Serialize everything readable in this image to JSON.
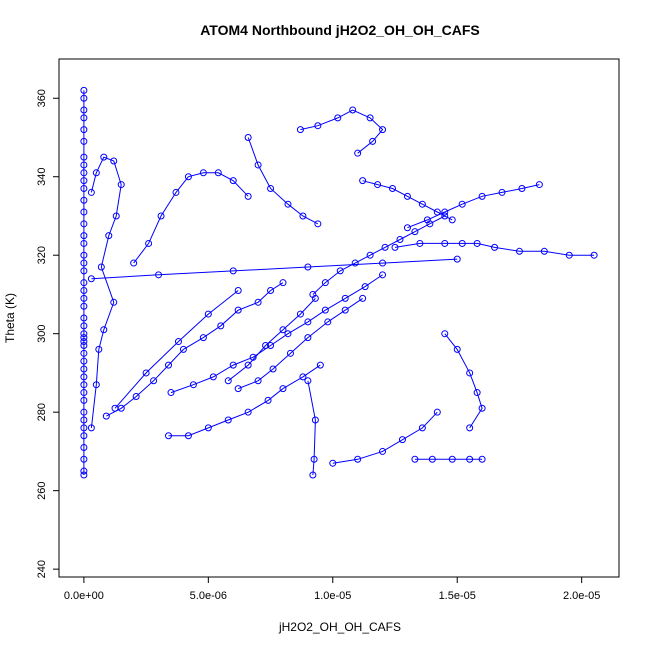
{
  "chart_data": {
    "type": "line",
    "title": "ATOM4 Northbound jH2O2_OH_OH_CAFS",
    "xlabel": "jH2O2_OH_OH_CAFS",
    "ylabel": "Theta (K)",
    "xlim": [
      -1e-06,
      2.15e-05
    ],
    "ylim": [
      238,
      370
    ],
    "x_ticks": [
      0,
      5e-06,
      1e-05,
      1.5e-05,
      2e-05
    ],
    "x_tick_labels": [
      "0.0e+00",
      "5.0e-06",
      "1.0e-05",
      "1.5e-05",
      "2.0e-05"
    ],
    "y_ticks": [
      240,
      260,
      280,
      300,
      320,
      340,
      360
    ],
    "y_tick_labels": [
      "240",
      "260",
      "280",
      "300",
      "320",
      "340",
      "360"
    ],
    "grid": false,
    "legend": "none",
    "marker": "open-circle",
    "color": "#0000ff",
    "series": [
      {
        "x": [
          0,
          0,
          0,
          0,
          0,
          0,
          0,
          0,
          0,
          0,
          0,
          0,
          0,
          0,
          0,
          0,
          0,
          0,
          0,
          0,
          0,
          0,
          0,
          0,
          0,
          0,
          0,
          0,
          0,
          0,
          0,
          0,
          0,
          0,
          0,
          0,
          0,
          0,
          0,
          0,
          0,
          0,
          0,
          0
        ],
        "y": [
          264,
          265,
          268,
          271,
          274,
          276,
          278,
          280,
          283,
          285,
          287,
          289,
          291,
          293,
          295,
          297,
          298,
          299,
          300,
          302,
          304,
          307,
          309,
          311,
          313,
          316,
          318,
          320,
          323,
          325,
          328,
          331,
          334,
          337,
          339,
          341,
          343,
          345,
          349,
          352,
          355,
          357,
          360,
          362
        ]
      },
      {
        "x": [
          3e-07,
          5e-07,
          6e-07,
          8e-07,
          1.2e-06,
          7e-07,
          1e-06,
          1.3e-06,
          1.5e-06,
          1.2e-06,
          8e-07,
          5e-07,
          3e-07
        ],
        "y": [
          276,
          287,
          296,
          301,
          308,
          317,
          325,
          330,
          338,
          344,
          345,
          341,
          336
        ]
      },
      {
        "x": [
          9e-07,
          1.5e-06,
          2.1e-06,
          2.8e-06,
          3.4e-06,
          4e-06,
          4.8e-06,
          5.5e-06,
          6.2e-06,
          7e-06,
          7.5e-06,
          8e-06
        ],
        "y": [
          279,
          281,
          284,
          288,
          292,
          296,
          299,
          302,
          306,
          308,
          311,
          313
        ]
      },
      {
        "x": [
          2e-06,
          2.6e-06,
          3.1e-06,
          3.7e-06,
          4.2e-06,
          4.8e-06,
          5.4e-06,
          6e-06,
          6.6e-06
        ],
        "y": [
          318,
          323,
          330,
          336,
          340,
          341,
          341,
          339,
          335
        ]
      },
      {
        "x": [
          3.5e-06,
          4.4e-06,
          5.2e-06,
          6e-06,
          6.8e-06,
          7.5e-06,
          8.2e-06,
          9e-06,
          9.7e-06,
          1.05e-05,
          1.13e-05,
          1.2e-05
        ],
        "y": [
          285,
          287,
          289,
          292,
          294,
          297,
          300,
          303,
          306,
          309,
          312,
          315
        ]
      },
      {
        "x": [
          3.4e-06,
          4.2e-06,
          5e-06,
          5.8e-06,
          6.6e-06,
          7.4e-06,
          8e-06,
          8.8e-06,
          9.5e-06
        ],
        "y": [
          274,
          274,
          276,
          278,
          280,
          283,
          286,
          289,
          292
        ]
      },
      {
        "x": [
          8.7e-06,
          9.4e-06,
          1.02e-05,
          1.08e-05,
          1.15e-05,
          1.2e-05,
          1.16e-05,
          1.1e-05
        ],
        "y": [
          352,
          353,
          355,
          357,
          355,
          352,
          349,
          346
        ]
      },
      {
        "x": [
          1.3e-05,
          1.38e-05,
          1.45e-05,
          1.52e-05,
          1.6e-05,
          1.68e-05,
          1.76e-05,
          1.83e-05
        ],
        "y": [
          327,
          329,
          331,
          333,
          335,
          336,
          337,
          338
        ]
      },
      {
        "x": [
          1e-05,
          1.1e-05,
          1.2e-05,
          1.28e-05,
          1.36e-05,
          1.42e-05
        ],
        "y": [
          267,
          268,
          270,
          273,
          276,
          280
        ]
      },
      {
        "x": [
          1.33e-05,
          1.4e-05,
          1.48e-05,
          1.55e-05,
          1.6e-05
        ],
        "y": [
          268,
          268,
          268,
          268,
          268
        ]
      },
      {
        "x": [
          9.2e-06,
          9.7e-06,
          1.03e-05,
          1.09e-05,
          1.15e-05,
          1.21e-05,
          1.27e-05,
          1.33e-05,
          1.39e-05,
          1.45e-05
        ],
        "y": [
          310,
          313,
          316,
          318,
          320,
          322,
          324,
          326,
          328,
          330
        ]
      },
      {
        "x": [
          1.25e-05,
          1.35e-05,
          1.45e-05,
          1.52e-05,
          1.58e-05,
          1.65e-05,
          1.75e-05,
          1.85e-05,
          1.95e-05,
          2.05e-05
        ],
        "y": [
          322,
          323,
          323,
          323,
          323,
          322,
          321,
          321,
          320,
          320
        ]
      },
      {
        "x": [
          3e-07,
          3e-06,
          6e-06,
          9e-06,
          1.2e-05,
          1.5e-05
        ],
        "y": [
          314,
          315,
          316,
          317,
          318,
          319
        ]
      },
      {
        "x": [
          6.2e-06,
          7e-06,
          7.6e-06,
          8.3e-06,
          9e-06,
          9.8e-06,
          1.05e-05,
          1.12e-05
        ],
        "y": [
          286,
          288,
          291,
          295,
          299,
          303,
          306,
          309
        ]
      },
      {
        "x": [
          1.45e-05,
          1.5e-05,
          1.55e-05,
          1.58e-05,
          1.6e-05,
          1.55e-05
        ],
        "y": [
          300,
          296,
          290,
          285,
          281,
          276
        ]
      },
      {
        "x": [
          5.8e-06,
          6.6e-06,
          7.3e-06,
          8e-06,
          8.7e-06,
          9.3e-06
        ],
        "y": [
          288,
          292,
          297,
          301,
          305,
          309
        ]
      },
      {
        "x": [
          1.12e-05,
          1.18e-05,
          1.24e-05,
          1.3e-05,
          1.36e-05,
          1.42e-05,
          1.48e-05
        ],
        "y": [
          339,
          338,
          337,
          335,
          333,
          331,
          329
        ]
      },
      {
        "x": [
          6.6e-06,
          7e-06,
          7.5e-06,
          8.2e-06,
          8.8e-06,
          9.4e-06
        ],
        "y": [
          350,
          343,
          337,
          333,
          330,
          328
        ]
      },
      {
        "x": [
          1.25e-06,
          2.5e-06,
          3.8e-06,
          5e-06,
          6.2e-06
        ],
        "y": [
          281,
          290,
          298,
          305,
          311
        ]
      },
      {
        "x": [
          9.2e-06,
          9.25e-06,
          9.3e-06,
          9e-06
        ],
        "y": [
          264,
          268,
          278,
          288
        ]
      }
    ]
  }
}
